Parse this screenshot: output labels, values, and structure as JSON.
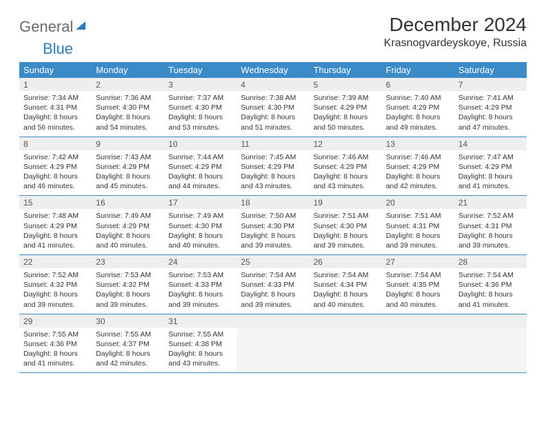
{
  "logo": {
    "text1": "General",
    "text2": "Blue"
  },
  "title": "December 2024",
  "location": "Krasnogvardeyskoye, Russia",
  "colors": {
    "header_bg": "#3b8bc9",
    "header_text": "#ffffff",
    "daynum_bg": "#eeeeee",
    "border": "#3b8bc9",
    "logo_gray": "#6a6a6a",
    "logo_blue": "#2b7bbf"
  },
  "dayNames": [
    "Sunday",
    "Monday",
    "Tuesday",
    "Wednesday",
    "Thursday",
    "Friday",
    "Saturday"
  ],
  "weeks": [
    [
      {
        "num": "1",
        "sunrise": "Sunrise: 7:34 AM",
        "sunset": "Sunset: 4:31 PM",
        "daylight": "Daylight: 8 hours and 56 minutes."
      },
      {
        "num": "2",
        "sunrise": "Sunrise: 7:36 AM",
        "sunset": "Sunset: 4:30 PM",
        "daylight": "Daylight: 8 hours and 54 minutes."
      },
      {
        "num": "3",
        "sunrise": "Sunrise: 7:37 AM",
        "sunset": "Sunset: 4:30 PM",
        "daylight": "Daylight: 8 hours and 53 minutes."
      },
      {
        "num": "4",
        "sunrise": "Sunrise: 7:38 AM",
        "sunset": "Sunset: 4:30 PM",
        "daylight": "Daylight: 8 hours and 51 minutes."
      },
      {
        "num": "5",
        "sunrise": "Sunrise: 7:39 AM",
        "sunset": "Sunset: 4:29 PM",
        "daylight": "Daylight: 8 hours and 50 minutes."
      },
      {
        "num": "6",
        "sunrise": "Sunrise: 7:40 AM",
        "sunset": "Sunset: 4:29 PM",
        "daylight": "Daylight: 8 hours and 49 minutes."
      },
      {
        "num": "7",
        "sunrise": "Sunrise: 7:41 AM",
        "sunset": "Sunset: 4:29 PM",
        "daylight": "Daylight: 8 hours and 47 minutes."
      }
    ],
    [
      {
        "num": "8",
        "sunrise": "Sunrise: 7:42 AM",
        "sunset": "Sunset: 4:29 PM",
        "daylight": "Daylight: 8 hours and 46 minutes."
      },
      {
        "num": "9",
        "sunrise": "Sunrise: 7:43 AM",
        "sunset": "Sunset: 4:29 PM",
        "daylight": "Daylight: 8 hours and 45 minutes."
      },
      {
        "num": "10",
        "sunrise": "Sunrise: 7:44 AM",
        "sunset": "Sunset: 4:29 PM",
        "daylight": "Daylight: 8 hours and 44 minutes."
      },
      {
        "num": "11",
        "sunrise": "Sunrise: 7:45 AM",
        "sunset": "Sunset: 4:29 PM",
        "daylight": "Daylight: 8 hours and 43 minutes."
      },
      {
        "num": "12",
        "sunrise": "Sunrise: 7:46 AM",
        "sunset": "Sunset: 4:29 PM",
        "daylight": "Daylight: 8 hours and 43 minutes."
      },
      {
        "num": "13",
        "sunrise": "Sunrise: 7:46 AM",
        "sunset": "Sunset: 4:29 PM",
        "daylight": "Daylight: 8 hours and 42 minutes."
      },
      {
        "num": "14",
        "sunrise": "Sunrise: 7:47 AM",
        "sunset": "Sunset: 4:29 PM",
        "daylight": "Daylight: 8 hours and 41 minutes."
      }
    ],
    [
      {
        "num": "15",
        "sunrise": "Sunrise: 7:48 AM",
        "sunset": "Sunset: 4:29 PM",
        "daylight": "Daylight: 8 hours and 41 minutes."
      },
      {
        "num": "16",
        "sunrise": "Sunrise: 7:49 AM",
        "sunset": "Sunset: 4:29 PM",
        "daylight": "Daylight: 8 hours and 40 minutes."
      },
      {
        "num": "17",
        "sunrise": "Sunrise: 7:49 AM",
        "sunset": "Sunset: 4:30 PM",
        "daylight": "Daylight: 8 hours and 40 minutes."
      },
      {
        "num": "18",
        "sunrise": "Sunrise: 7:50 AM",
        "sunset": "Sunset: 4:30 PM",
        "daylight": "Daylight: 8 hours and 39 minutes."
      },
      {
        "num": "19",
        "sunrise": "Sunrise: 7:51 AM",
        "sunset": "Sunset: 4:30 PM",
        "daylight": "Daylight: 8 hours and 39 minutes."
      },
      {
        "num": "20",
        "sunrise": "Sunrise: 7:51 AM",
        "sunset": "Sunset: 4:31 PM",
        "daylight": "Daylight: 8 hours and 39 minutes."
      },
      {
        "num": "21",
        "sunrise": "Sunrise: 7:52 AM",
        "sunset": "Sunset: 4:31 PM",
        "daylight": "Daylight: 8 hours and 39 minutes."
      }
    ],
    [
      {
        "num": "22",
        "sunrise": "Sunrise: 7:52 AM",
        "sunset": "Sunset: 4:32 PM",
        "daylight": "Daylight: 8 hours and 39 minutes."
      },
      {
        "num": "23",
        "sunrise": "Sunrise: 7:53 AM",
        "sunset": "Sunset: 4:32 PM",
        "daylight": "Daylight: 8 hours and 39 minutes."
      },
      {
        "num": "24",
        "sunrise": "Sunrise: 7:53 AM",
        "sunset": "Sunset: 4:33 PM",
        "daylight": "Daylight: 8 hours and 39 minutes."
      },
      {
        "num": "25",
        "sunrise": "Sunrise: 7:54 AM",
        "sunset": "Sunset: 4:33 PM",
        "daylight": "Daylight: 8 hours and 39 minutes."
      },
      {
        "num": "26",
        "sunrise": "Sunrise: 7:54 AM",
        "sunset": "Sunset: 4:34 PM",
        "daylight": "Daylight: 8 hours and 40 minutes."
      },
      {
        "num": "27",
        "sunrise": "Sunrise: 7:54 AM",
        "sunset": "Sunset: 4:35 PM",
        "daylight": "Daylight: 8 hours and 40 minutes."
      },
      {
        "num": "28",
        "sunrise": "Sunrise: 7:54 AM",
        "sunset": "Sunset: 4:36 PM",
        "daylight": "Daylight: 8 hours and 41 minutes."
      }
    ],
    [
      {
        "num": "29",
        "sunrise": "Sunrise: 7:55 AM",
        "sunset": "Sunset: 4:36 PM",
        "daylight": "Daylight: 8 hours and 41 minutes."
      },
      {
        "num": "30",
        "sunrise": "Sunrise: 7:55 AM",
        "sunset": "Sunset: 4:37 PM",
        "daylight": "Daylight: 8 hours and 42 minutes."
      },
      {
        "num": "31",
        "sunrise": "Sunrise: 7:55 AM",
        "sunset": "Sunset: 4:38 PM",
        "daylight": "Daylight: 8 hours and 43 minutes."
      },
      null,
      null,
      null,
      null
    ]
  ]
}
